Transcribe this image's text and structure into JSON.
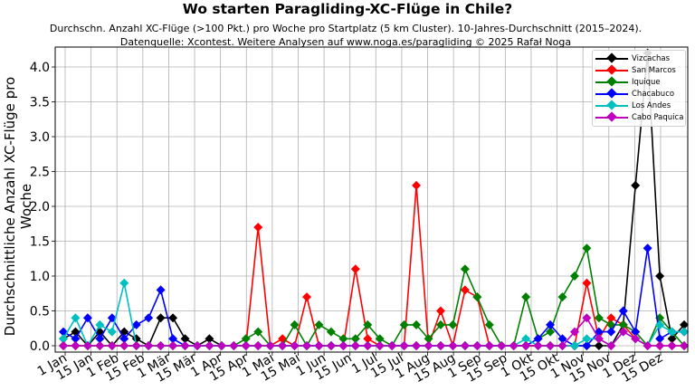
{
  "header": {
    "title": "Wo starten Paragliding-XC-Flüge in Chile?",
    "subtitle_line1": "Durchschn. Anzahl XC-Flüge (>100 Pkt.) pro Woche pro Startplatz (5 km Cluster). 10-Jahres-Durchschnitt (2015–2024).",
    "subtitle_line2": "Datenquelle: Xcontest. Weitere Analysen auf www.noga.es/paragliding © 2025 Rafał Noga"
  },
  "axes": {
    "ylabel": "Durchschnittliche Anzahl XC-Flüge pro Woche",
    "yticks": [
      "0.0",
      "0.5",
      "1.0",
      "1.5",
      "2.0",
      "2.5",
      "3.0",
      "3.5",
      "4.0"
    ],
    "xticks": [
      "1 Jan",
      "15 Jan",
      "1 Feb",
      "15 Feb",
      "1 Mär",
      "15 Mär",
      "1 Apr",
      "15 Apr",
      "1 Mai",
      "15 Mai",
      "1 Jun",
      "15 Jun",
      "1 Jul",
      "15 Jul",
      "1 Aug",
      "15 Aug",
      "1 Sep",
      "15 Sep",
      "1 Okt",
      "15 Okt",
      "1 Nov",
      "15 Nov",
      "1 Dez",
      "15 Dez"
    ]
  },
  "legend": {
    "items": [
      {
        "label": "Vizcachas",
        "color": "#000000"
      },
      {
        "label": "San Marcos",
        "color": "#ff0000"
      },
      {
        "label": "Iquique",
        "color": "#008000"
      },
      {
        "label": "Chacabuco",
        "color": "#0000ff"
      },
      {
        "label": "Los Andes",
        "color": "#00bfbf"
      },
      {
        "label": "Cabo Paquica",
        "color": "#bf00bf"
      }
    ]
  },
  "chart_data": {
    "type": "line",
    "title": "Wo starten Paragliding-XC-Flüge in Chile?",
    "subtitle": "Durchschn. Anzahl XC-Flüge (>100 Pkt.) pro Woche pro Startplatz (5 km Cluster). 10-Jahres-Durchschnitt (2015–2024).",
    "xlabel": "",
    "ylabel": "Durchschnittliche Anzahl XC-Flüge pro Woche",
    "x": [
      1,
      2,
      3,
      4,
      5,
      6,
      7,
      8,
      9,
      10,
      11,
      12,
      13,
      14,
      15,
      16,
      17,
      18,
      19,
      20,
      21,
      22,
      23,
      24,
      25,
      26,
      27,
      28,
      29,
      30,
      31,
      32,
      33,
      34,
      35,
      36,
      37,
      38,
      39,
      40,
      41,
      42,
      43,
      44,
      45,
      46,
      47,
      48,
      49,
      50,
      51,
      52
    ],
    "x_unit": "week of year",
    "xticks": [
      "1 Jan",
      "15 Jan",
      "1 Feb",
      "15 Feb",
      "1 Mär",
      "15 Mär",
      "1 Apr",
      "15 Apr",
      "1 Mai",
      "15 Mai",
      "1 Jun",
      "15 Jun",
      "1 Jul",
      "15 Jul",
      "1 Aug",
      "15 Aug",
      "1 Sep",
      "15 Sep",
      "1 Okt",
      "15 Okt",
      "1 Nov",
      "15 Nov",
      "1 Dez",
      "15 Dez"
    ],
    "ylim": [
      -0.05,
      4.3
    ],
    "yticks": [
      0.0,
      0.5,
      1.0,
      1.5,
      2.0,
      2.5,
      3.0,
      3.5,
      4.0
    ],
    "grid": true,
    "legend_position": "upper right",
    "marker": "diamond",
    "series": [
      {
        "name": "Vizcachas",
        "color": "#000000",
        "values": [
          0.1,
          0.2,
          0,
          0.2,
          0,
          0.2,
          0.1,
          0,
          0.4,
          0.4,
          0.1,
          0,
          0.1,
          0,
          0,
          0,
          0,
          0,
          0,
          0,
          0,
          0,
          0,
          0,
          0,
          0,
          0,
          0,
          0,
          0,
          0,
          0,
          0,
          0,
          0,
          0,
          0,
          0,
          0,
          0,
          0,
          0,
          0,
          0,
          0,
          0,
          0.3,
          2.3,
          4.2,
          1.0,
          0.1,
          0.3
        ]
      },
      {
        "name": "San Marcos",
        "color": "#ff0000",
        "values": [
          0,
          0,
          0,
          0,
          0,
          0,
          0,
          0,
          0,
          0,
          0,
          0,
          0,
          0,
          0,
          0,
          1.7,
          0,
          0.1,
          0,
          0.7,
          0,
          0,
          0,
          1.1,
          0.1,
          0,
          0,
          0,
          2.3,
          0,
          0.5,
          0,
          0.8,
          0.7,
          0,
          0,
          0,
          0,
          0,
          0,
          0,
          0,
          0.9,
          0.1,
          0.4,
          0.3,
          0.1,
          0,
          0,
          0,
          0
        ]
      },
      {
        "name": "Iquique",
        "color": "#008000",
        "values": [
          0,
          0,
          0,
          0,
          0,
          0,
          0,
          0,
          0,
          0,
          0,
          0,
          0,
          0,
          0,
          0.1,
          0.2,
          0,
          0,
          0.3,
          0,
          0.3,
          0.2,
          0.1,
          0.1,
          0.3,
          0.1,
          0,
          0.3,
          0.3,
          0.1,
          0.3,
          0.3,
          1.1,
          0.7,
          0.3,
          0,
          0,
          0.7,
          0.1,
          0.2,
          0.7,
          1.0,
          1.4,
          0.4,
          0.3,
          0.3,
          0.2,
          0,
          0.4,
          0.2,
          0
        ]
      },
      {
        "name": "Chacabuco",
        "color": "#0000ff",
        "values": [
          0.2,
          0.1,
          0.4,
          0.1,
          0.4,
          0.1,
          0.3,
          0.4,
          0.8,
          0.1,
          0,
          0,
          0,
          0,
          0,
          0,
          0,
          0,
          0,
          0,
          0,
          0,
          0,
          0,
          0,
          0,
          0,
          0,
          0,
          0,
          0,
          0,
          0,
          0,
          0,
          0,
          0,
          0,
          0,
          0.1,
          0.3,
          0.1,
          0,
          0,
          0.2,
          0.2,
          0.5,
          0.2,
          1.4,
          0.1,
          0.2,
          0.2
        ]
      },
      {
        "name": "Los Andes",
        "color": "#00bfbf",
        "values": [
          0.1,
          0.4,
          0,
          0.3,
          0.2,
          0.9,
          0,
          0,
          0,
          0,
          0,
          0,
          0,
          0,
          0,
          0,
          0,
          0,
          0,
          0,
          0,
          0,
          0,
          0,
          0,
          0,
          0,
          0,
          0,
          0,
          0,
          0,
          0,
          0,
          0,
          0,
          0,
          0,
          0.1,
          0,
          0,
          0,
          0,
          0.1,
          0.1,
          0,
          0.2,
          0.1,
          0,
          0.3,
          0.2,
          0.2
        ]
      },
      {
        "name": "Cabo Paquica",
        "color": "#bf00bf",
        "values": [
          0,
          0,
          0,
          0,
          0,
          0,
          0,
          0,
          0,
          0,
          0,
          0,
          0,
          0,
          0,
          0,
          0,
          0,
          0,
          0,
          0,
          0,
          0,
          0,
          0,
          0,
          0,
          0,
          0,
          0,
          0,
          0,
          0,
          0,
          0,
          0,
          0,
          0,
          0,
          0,
          0,
          0,
          0.2,
          0.4,
          0.1,
          0,
          0.2,
          0.1,
          0,
          0,
          0,
          0
        ]
      }
    ]
  }
}
